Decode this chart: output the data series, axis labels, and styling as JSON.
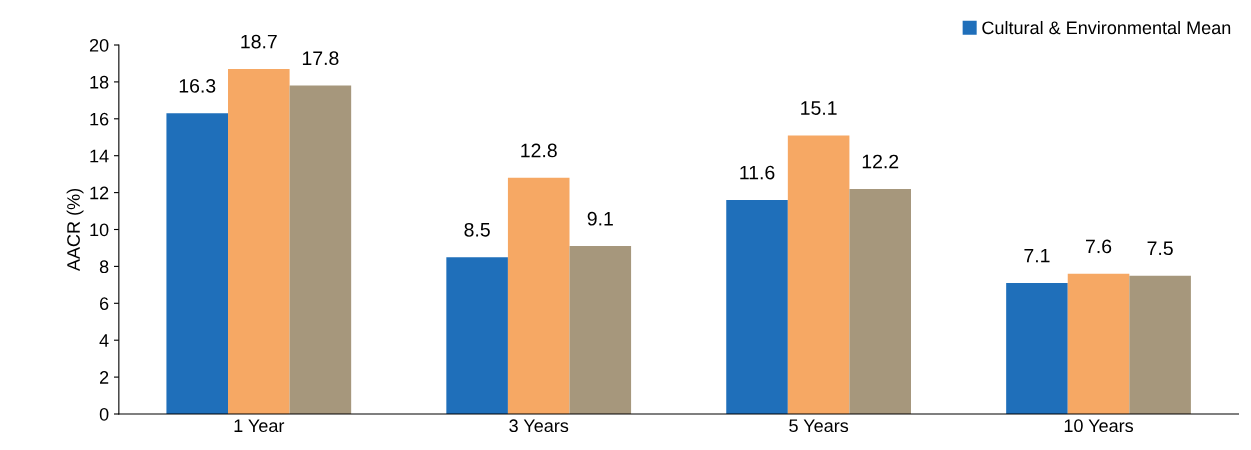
{
  "chart_data": {
    "type": "bar",
    "ylabel": "AACR (%)",
    "categories": [
      "1 Year",
      "3 Years",
      "5 Years",
      "10 Years"
    ],
    "series": [
      {
        "name": "Cultural & Environmental Mean",
        "color": "#1f6fba",
        "values": [
          16.3,
          8.5,
          11.6,
          7.1
        ]
      },
      {
        "color": "#f6a864",
        "values": [
          18.7,
          12.8,
          15.1,
          7.6
        ]
      },
      {
        "color": "#a6977c",
        "values": [
          17.8,
          9.1,
          12.2,
          7.5
        ]
      }
    ],
    "ylim": [
      0,
      20
    ],
    "yticks": [
      0,
      2,
      4,
      6,
      8,
      10,
      12,
      14,
      16,
      18,
      20
    ],
    "data_labels": true,
    "grid": false,
    "legend": "top right"
  }
}
